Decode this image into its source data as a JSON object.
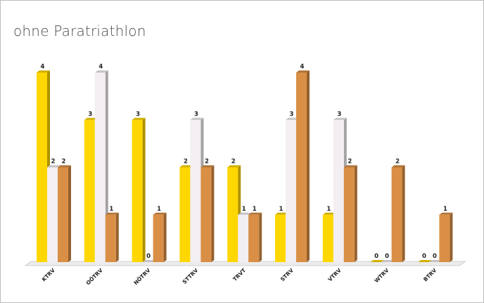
{
  "chart_data": {
    "type": "bar",
    "title": "ohne Paratriathlon",
    "xlabel": "",
    "ylabel": "",
    "categories": [
      "KTRV",
      "OÖTRV",
      "NÖTRV",
      "STTRV",
      "TRVT",
      "STRV",
      "VTRV",
      "WTRV",
      "BTRV"
    ],
    "series": [
      {
        "values": [
          4,
          3,
          3,
          2,
          2,
          1,
          1,
          0,
          0
        ],
        "color": "#ffd700"
      },
      {
        "values": [
          2,
          4,
          0,
          3,
          1,
          3,
          3,
          0,
          0
        ],
        "color": "#f2eef2"
      },
      {
        "values": [
          2,
          1,
          1,
          2,
          1,
          4,
          2,
          2,
          1
        ],
        "color": "#d98f45"
      }
    ],
    "ylim": [
      0,
      4
    ],
    "grid": false,
    "legend": "none",
    "style": "3d-columns"
  }
}
